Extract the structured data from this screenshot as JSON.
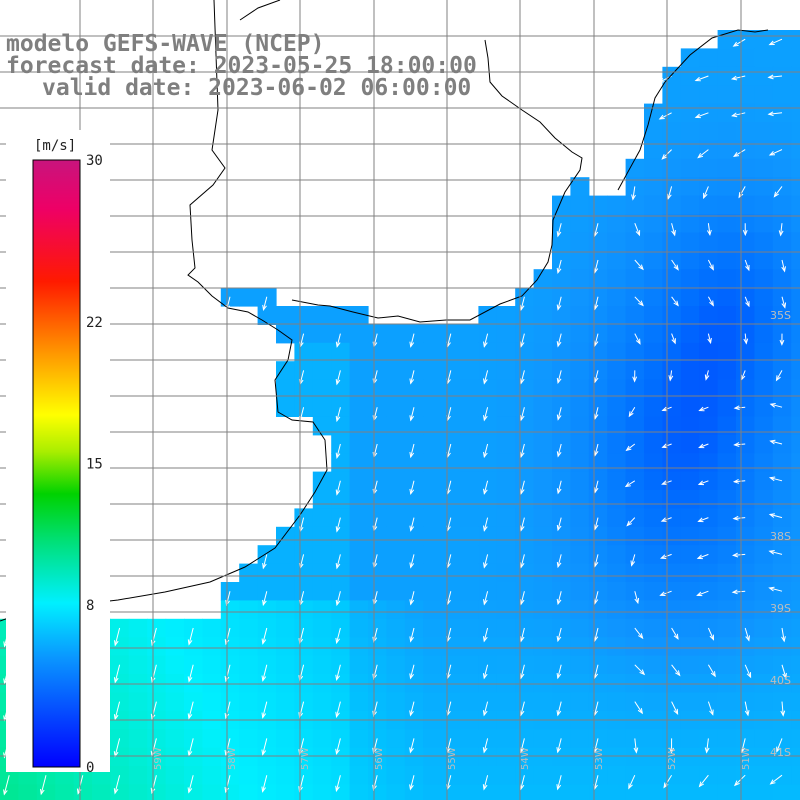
{
  "header": {
    "line1": "modelo GEFS-WAVE (NCEP)",
    "line2": "forecast date: 2023-05-25 18:00:00",
    "line3": "valid date: 2023-06-02 06:00:00"
  },
  "colorbar": {
    "unit": "[m/s]",
    "ticks": [
      "30",
      "22",
      "15",
      "8",
      "0"
    ],
    "tick_values": [
      30,
      22,
      15,
      8,
      0
    ],
    "min": 0,
    "max": 30
  },
  "map": {
    "lat_labels": [
      "35S",
      "38S",
      "39S",
      "40S",
      "41S"
    ],
    "lon_labels": [
      "61W",
      "60W",
      "59W",
      "58W",
      "57W",
      "56W",
      "55W",
      "54W",
      "53W",
      "52W",
      "51W"
    ],
    "colors": {
      "land": "#ffffff",
      "coast": "#000000",
      "grid": "#808080",
      "arrow": "#ffffff"
    }
  }
}
